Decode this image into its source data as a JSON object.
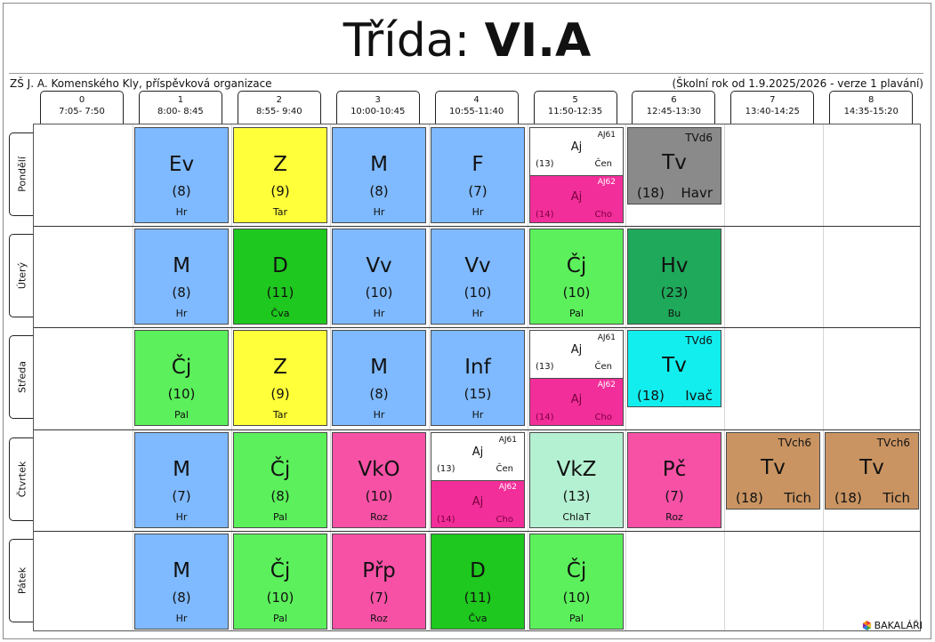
{
  "title": {
    "prefix": "Třída: ",
    "klass": "VI.A"
  },
  "school": "ZŠ J. A. Komenského Kly, příspěvková organizace",
  "year": "(Školní rok od 1.9.2025/2026 - verze 1 plavání)",
  "hours": [
    {
      "num": "0",
      "time": "7:05- 7:50"
    },
    {
      "num": "1",
      "time": "8:00- 8:45"
    },
    {
      "num": "2",
      "time": "8:55- 9:40"
    },
    {
      "num": "3",
      "time": "10:00-10:45"
    },
    {
      "num": "4",
      "time": "10:55-11:40"
    },
    {
      "num": "5",
      "time": "11:50-12:35"
    },
    {
      "num": "6",
      "time": "12:45-13:30"
    },
    {
      "num": "7",
      "time": "13:40-14:25"
    },
    {
      "num": "8",
      "time": "14:35-15:20"
    }
  ],
  "days": [
    "Pondělí",
    "Úterý",
    "Středa",
    "Čtvrtek",
    "Pátek"
  ],
  "lessons": [
    {
      "day": 0,
      "hour": 1,
      "kind": "normal",
      "subject": "Ev",
      "room": "(8)",
      "teacher": "Hr",
      "color": "#7fb9ff"
    },
    {
      "day": 0,
      "hour": 2,
      "kind": "normal",
      "subject": "Z",
      "room": "(9)",
      "teacher": "Tar",
      "color": "#ffff3a"
    },
    {
      "day": 0,
      "hour": 3,
      "kind": "normal",
      "subject": "M",
      "room": "(8)",
      "teacher": "Hr",
      "color": "#7fb9ff"
    },
    {
      "day": 0,
      "hour": 4,
      "kind": "normal",
      "subject": "F",
      "room": "(7)",
      "teacher": "Hr",
      "color": "#7fb9ff"
    },
    {
      "day": 0,
      "hour": 5,
      "kind": "split",
      "top": {
        "group": "AJ61",
        "subject": "Aj",
        "room": "(13)",
        "teacher": "Čen"
      },
      "bottom": {
        "group": "AJ62",
        "subject": "Aj",
        "room": "(14)",
        "teacher": "Cho"
      }
    },
    {
      "day": 0,
      "hour": 6,
      "kind": "tv",
      "group": "TVd6",
      "subject": "Tv",
      "room": "(18)",
      "teacher": "Havr",
      "color": "#8a8a8a"
    },
    {
      "day": 1,
      "hour": 1,
      "kind": "normal",
      "subject": "M",
      "room": "(8)",
      "teacher": "Hr",
      "color": "#7fb9ff"
    },
    {
      "day": 1,
      "hour": 2,
      "kind": "normal",
      "subject": "D",
      "room": "(11)",
      "teacher": "Čva",
      "color": "#1ec81e"
    },
    {
      "day": 1,
      "hour": 3,
      "kind": "normal",
      "subject": "Vv",
      "room": "(10)",
      "teacher": "Hr",
      "color": "#7fb9ff"
    },
    {
      "day": 1,
      "hour": 4,
      "kind": "normal",
      "subject": "Vv",
      "room": "(10)",
      "teacher": "Hr",
      "color": "#7fb9ff"
    },
    {
      "day": 1,
      "hour": 5,
      "kind": "normal",
      "subject": "Čj",
      "room": "(10)",
      "teacher": "Pal",
      "color": "#5cf05c"
    },
    {
      "day": 1,
      "hour": 6,
      "kind": "normal",
      "subject": "Hv",
      "room": "(23)",
      "teacher": "Bu",
      "color": "#1fa95a"
    },
    {
      "day": 2,
      "hour": 1,
      "kind": "normal",
      "subject": "Čj",
      "room": "(10)",
      "teacher": "Pal",
      "color": "#5cf05c"
    },
    {
      "day": 2,
      "hour": 2,
      "kind": "normal",
      "subject": "Z",
      "room": "(9)",
      "teacher": "Tar",
      "color": "#ffff3a"
    },
    {
      "day": 2,
      "hour": 3,
      "kind": "normal",
      "subject": "M",
      "room": "(8)",
      "teacher": "Hr",
      "color": "#7fb9ff"
    },
    {
      "day": 2,
      "hour": 4,
      "kind": "normal",
      "subject": "Inf",
      "room": "(15)",
      "teacher": "Hr",
      "color": "#7fb9ff"
    },
    {
      "day": 2,
      "hour": 5,
      "kind": "split",
      "top": {
        "group": "AJ61",
        "subject": "Aj",
        "room": "(13)",
        "teacher": "Čen"
      },
      "bottom": {
        "group": "AJ62",
        "subject": "Aj",
        "room": "(14)",
        "teacher": "Cho"
      }
    },
    {
      "day": 2,
      "hour": 6,
      "kind": "tv",
      "group": "TVd6",
      "subject": "Tv",
      "room": "(18)",
      "teacher": "Ivač",
      "color": "#12eeee"
    },
    {
      "day": 3,
      "hour": 1,
      "kind": "normal",
      "subject": "M",
      "room": "(7)",
      "teacher": "Hr",
      "color": "#7fb9ff"
    },
    {
      "day": 3,
      "hour": 2,
      "kind": "normal",
      "subject": "Čj",
      "room": "(8)",
      "teacher": "Pal",
      "color": "#5cf05c"
    },
    {
      "day": 3,
      "hour": 3,
      "kind": "normal",
      "subject": "VkO",
      "room": "(10)",
      "teacher": "Roz",
      "color": "#f751a6"
    },
    {
      "day": 3,
      "hour": 4,
      "kind": "split",
      "top": {
        "group": "AJ61",
        "subject": "Aj",
        "room": "(13)",
        "teacher": "Čen"
      },
      "bottom": {
        "group": "AJ62",
        "subject": "Aj",
        "room": "(14)",
        "teacher": "Cho"
      }
    },
    {
      "day": 3,
      "hour": 5,
      "kind": "normal",
      "subject": "VkZ",
      "room": "(13)",
      "teacher": "ChlaT",
      "color": "#b4f0d2"
    },
    {
      "day": 3,
      "hour": 6,
      "kind": "normal",
      "subject": "Pč",
      "room": "(7)",
      "teacher": "Roz",
      "color": "#f751a6"
    },
    {
      "day": 3,
      "hour": 7,
      "kind": "tv",
      "group": "TVch6",
      "subject": "Tv",
      "room": "(18)",
      "teacher": "Tich",
      "color": "#c99462"
    },
    {
      "day": 3,
      "hour": 8,
      "kind": "tv",
      "group": "TVch6",
      "subject": "Tv",
      "room": "(18)",
      "teacher": "Tich",
      "color": "#c99462"
    },
    {
      "day": 4,
      "hour": 1,
      "kind": "normal",
      "subject": "M",
      "room": "(8)",
      "teacher": "Hr",
      "color": "#7fb9ff"
    },
    {
      "day": 4,
      "hour": 2,
      "kind": "normal",
      "subject": "Čj",
      "room": "(10)",
      "teacher": "Pal",
      "color": "#5cf05c"
    },
    {
      "day": 4,
      "hour": 3,
      "kind": "normal",
      "subject": "Přp",
      "room": "(7)",
      "teacher": "Roz",
      "color": "#f751a6"
    },
    {
      "day": 4,
      "hour": 4,
      "kind": "normal",
      "subject": "D",
      "room": "(11)",
      "teacher": "Čva",
      "color": "#1ec81e"
    },
    {
      "day": 4,
      "hour": 5,
      "kind": "normal",
      "subject": "Čj",
      "room": "(10)",
      "teacher": "Pal",
      "color": "#5cf05c"
    }
  ],
  "logo": {
    "text": "BAKALÁŘI"
  }
}
